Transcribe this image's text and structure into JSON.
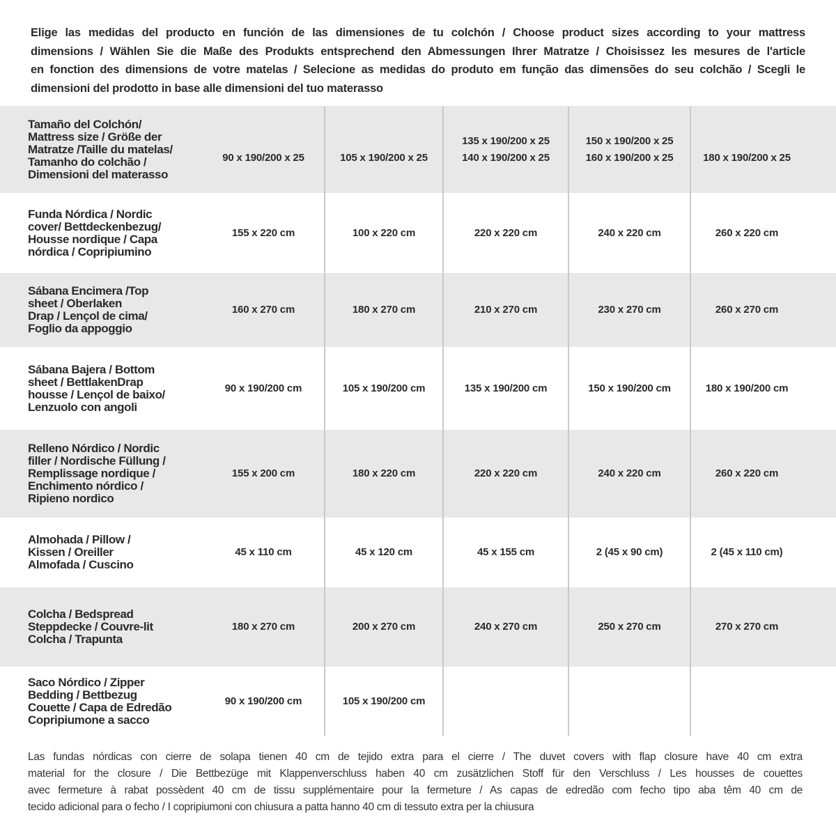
{
  "intro_lines": [
    "Elige las medidas del producto en función de las dimensiones de tu colchón / Choose product sizes according to your mattress",
    "dimensions / Wählen Sie die Maße des Produkts entsprechend den Abmessungen Ihrer Matratze / Choisissez les mesures de l'article",
    "en fonction des dimensions de votre matelas / Selecione as medidas do produto em função das dimensões do seu colchão / Scegli le",
    "dimensioni del prodotto in base alle dimensioni del tuo materasso"
  ],
  "header": {
    "label_lines": [
      "Tamaño del Colchón/",
      "Mattress size / Größe der",
      "Matratze /Taille du matelas/",
      "Tamanho do colchão /",
      "Dimensioni del materasso"
    ],
    "sizes": [
      [
        "90 x 190/200 x 25"
      ],
      [
        "105 x 190/200 x 25"
      ],
      [
        "135 x 190/200 x 25",
        "140 x 190/200 x 25"
      ],
      [
        "150 x 190/200 x 25",
        "160 x 190/200 x 25"
      ],
      [
        "180 x 190/200 x 25"
      ]
    ]
  },
  "rows": [
    {
      "label_lines": [
        "Funda Nórdica /   Nordic",
        "cover/ Bettdeckenbezug/",
        "Housse nordique  / Capa",
        "nórdica / Copripiumino"
      ],
      "values": [
        "155 x 220 cm",
        "100 x 220 cm",
        "220 x 220 cm",
        "240 x 220 cm",
        "260 x 220 cm"
      ]
    },
    {
      "label_lines": [
        "Sábana Encimera /Top",
        "sheet / Oberlaken",
        "Drap / Lençol de cima/",
        "Foglio da appoggio"
      ],
      "values": [
        "160 x 270 cm",
        "180 x 270 cm",
        "210 x 270 cm",
        "230 x 270 cm",
        "260 x 270 cm"
      ]
    },
    {
      "label_lines": [
        "Sábana Bajera / Bottom",
        "sheet / BettlakenDrap",
        "housse / Lençol de baixo/",
        "Lenzuolo con angoli"
      ],
      "values": [
        "90 x 190/200 cm",
        "105 x 190/200 cm",
        "135 x 190/200 cm",
        "150 x 190/200 cm",
        "180 x 190/200 cm"
      ]
    },
    {
      "label_lines": [
        "Relleno Nórdico / Nordic",
        "filler / Nordische Füllung /",
        "Remplissage nordique /",
        "Enchimento nórdico /",
        "Ripieno nordico"
      ],
      "values": [
        "155 x 200 cm",
        "180 x 220 cm",
        "220 x 220 cm",
        "240 x 220 cm",
        "260 x 220 cm"
      ]
    },
    {
      "label_lines": [
        "Almohada  / Pillow /",
        "Kissen / Oreiller",
        "Almofada / Cuscino"
      ],
      "values": [
        "45 x 110 cm",
        "45 x 120 cm",
        "45 x 155 cm",
        "2 (45 x 90 cm)",
        "2 (45 x 110 cm)"
      ]
    },
    {
      "label_lines": [
        "Colcha / Bedspread",
        "Steppdecke / Couvre-lit",
        "Colcha / Trapunta"
      ],
      "values": [
        "180 x 270 cm",
        "200 x 270 cm",
        "240 x 270 cm",
        "250 x 270 cm",
        "270 x 270 cm"
      ]
    },
    {
      "label_lines": [
        "Saco Nórdico / Zipper",
        "Bedding / Bettbezug",
        "Couette  / Capa de Edredão",
        "Copripiumone a sacco"
      ],
      "values": [
        "90 x 190/200 cm",
        "105 x 190/200 cm",
        "",
        "",
        ""
      ]
    }
  ],
  "footer_lines": [
    "Las fundas nórdicas con cierre de solapa tienen 40 cm de tejido extra para el cierre   / The duvet covers with flap closure have 40 cm extra",
    "material for the closure / Die Bettbezüge mit Klappenverschluss haben 40 cm zusätzlichen Stoff für den Verschluss / Les housses de couettes",
    "avec fermeture à rabat possèdent 40 cm de tissu supplémentaire pour la fermeture / As capas de edredão com fecho tipo aba têm 40 cm de",
    "tecido adicional para o fecho / I copripiumoni con chiusura a patta hanno 40 cm di tessuto extra per la chiusura"
  ],
  "colors": {
    "row_band": "#e8e8e9",
    "text": "#2a2a2a",
    "divider": "#c9c9cb"
  }
}
